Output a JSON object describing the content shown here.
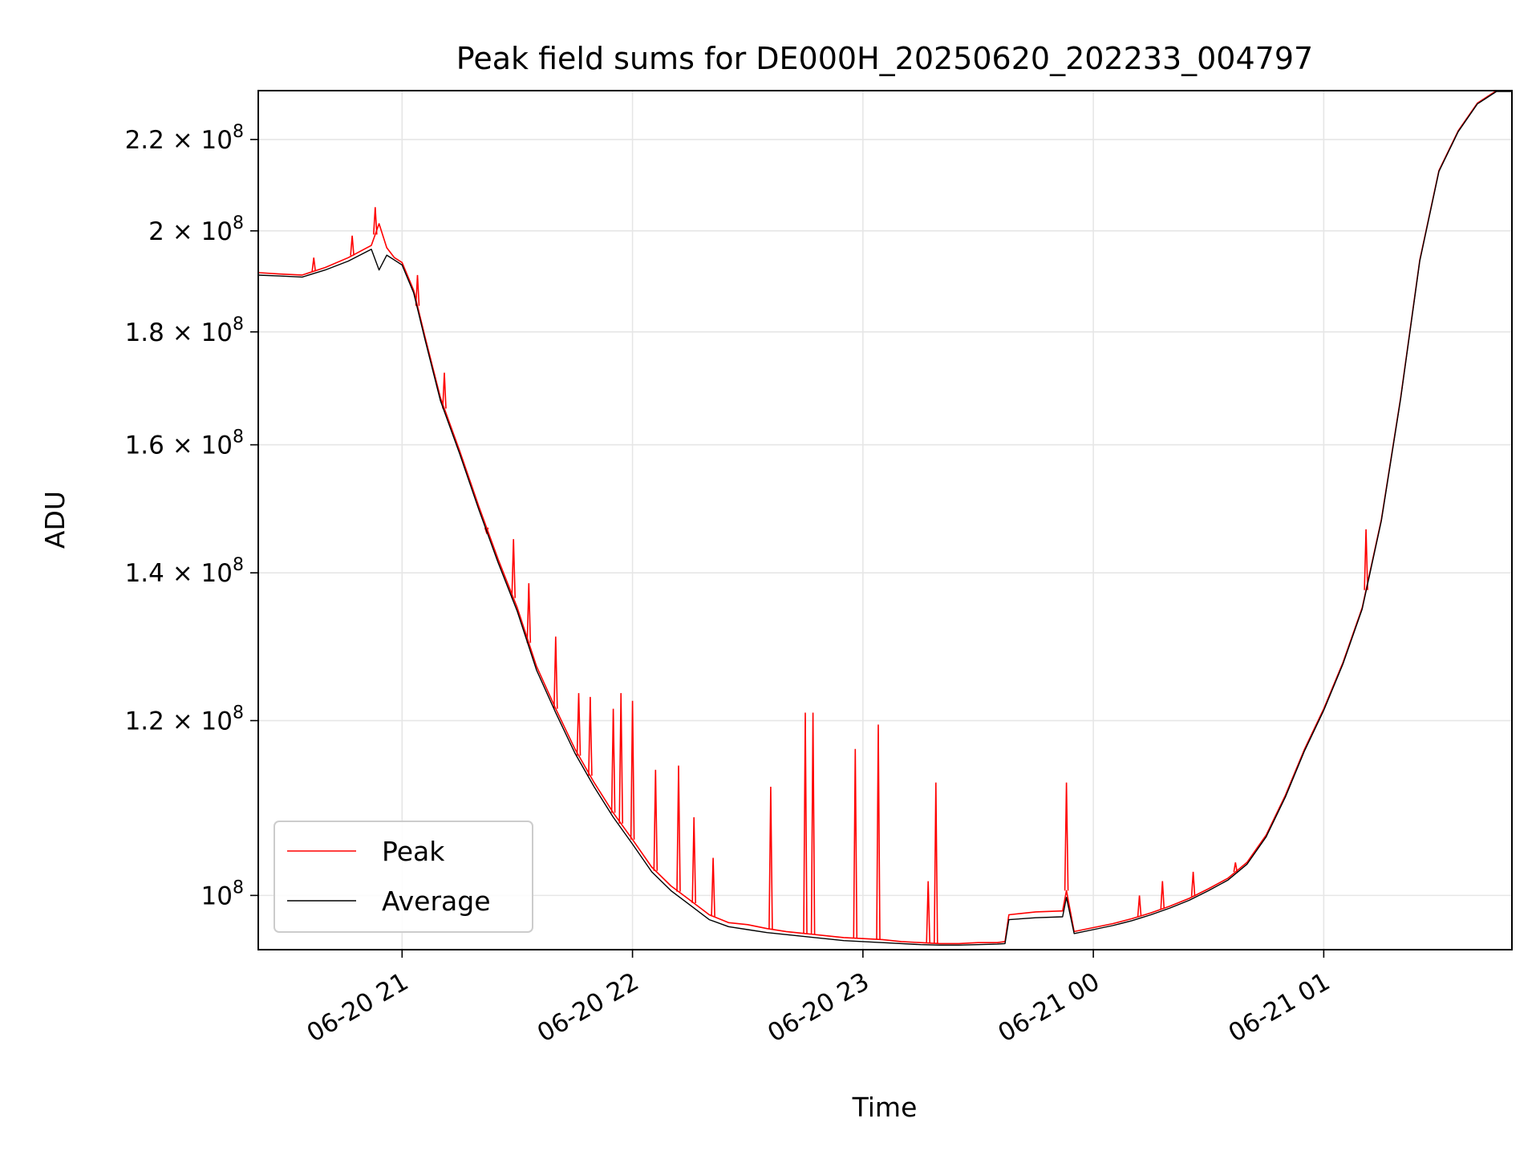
{
  "chart_data": {
    "type": "line",
    "title": "Peak field sums for DE000H_20250620_202233_004797",
    "xlabel": "Time",
    "ylabel": "ADU",
    "yscale": "log",
    "grid": true,
    "legend_position": "lower-left",
    "xlim": [
      "2025-06-20 20:22:33",
      "2025-06-21 01:49:00"
    ],
    "ylim": [
      94500000,
      231500000
    ],
    "x_ticks": [
      {
        "value": "2025-06-20 21:00",
        "label": "06-20 21"
      },
      {
        "value": "2025-06-20 22:00",
        "label": "06-20 22"
      },
      {
        "value": "2025-06-20 23:00",
        "label": "06-20 23"
      },
      {
        "value": "2025-06-21 00:00",
        "label": "06-21 00"
      },
      {
        "value": "2025-06-21 01:00",
        "label": "06-21 01"
      }
    ],
    "y_ticks": [
      {
        "value": 100000000,
        "label": "10",
        "exp": "8",
        "mant": ""
      },
      {
        "value": 120000000,
        "label": "1.2 × 10",
        "exp": "8",
        "mant": "1.2"
      },
      {
        "value": 140000000,
        "label": "1.4 × 10",
        "exp": "8",
        "mant": "1.4"
      },
      {
        "value": 160000000,
        "label": "1.6 × 10",
        "exp": "8",
        "mant": "1.6"
      },
      {
        "value": 180000000,
        "label": "1.8 × 10",
        "exp": "8",
        "mant": "1.8"
      },
      {
        "value": 200000000,
        "label": "2 × 10",
        "exp": "8",
        "mant": "2"
      },
      {
        "value": 220000000,
        "label": "2.2 × 10",
        "exp": "8",
        "mant": "2.2"
      }
    ],
    "series": [
      {
        "name": "Peak",
        "color": "#ff0000",
        "points": [
          [
            "2025-06-20 20:22",
            191500000
          ],
          [
            "2025-06-20 20:28",
            191200000
          ],
          [
            "2025-06-20 20:34",
            191000000
          ],
          [
            "2025-06-20 20:40",
            192500000
          ],
          [
            "2025-06-20 20:46",
            194500000
          ],
          [
            "2025-06-20 20:52",
            197000000
          ],
          [
            "2025-06-20 20:54",
            201500000
          ],
          [
            "2025-06-20 20:56",
            196500000
          ],
          [
            "2025-06-20 20:58",
            194500000
          ],
          [
            "2025-06-20 21:00",
            193500000
          ],
          [
            "2025-06-20 21:03",
            188000000
          ],
          [
            "2025-06-20 21:06",
            179000000
          ],
          [
            "2025-06-20 21:10",
            168000000
          ],
          [
            "2025-06-20 21:15",
            159000000
          ],
          [
            "2025-06-20 21:20",
            150000000
          ],
          [
            "2025-06-20 21:25",
            142000000
          ],
          [
            "2025-06-20 21:30",
            135000000
          ],
          [
            "2025-06-20 21:35",
            127000000
          ],
          [
            "2025-06-20 21:40",
            121500000
          ],
          [
            "2025-06-20 21:45",
            116500000
          ],
          [
            "2025-06-20 21:50",
            112500000
          ],
          [
            "2025-06-20 21:55",
            109000000
          ],
          [
            "2025-06-20 22:00",
            106000000
          ],
          [
            "2025-06-20 22:05",
            103000000
          ],
          [
            "2025-06-20 22:10",
            101000000
          ],
          [
            "2025-06-20 22:15",
            99500000
          ],
          [
            "2025-06-20 22:20",
            98000000
          ],
          [
            "2025-06-20 22:25",
            97200000
          ],
          [
            "2025-06-20 22:30",
            97000000
          ],
          [
            "2025-06-20 22:35",
            96600000
          ],
          [
            "2025-06-20 22:40",
            96300000
          ],
          [
            "2025-06-20 22:45",
            96100000
          ],
          [
            "2025-06-20 22:50",
            95900000
          ],
          [
            "2025-06-20 22:55",
            95700000
          ],
          [
            "2025-06-20 23:00",
            95600000
          ],
          [
            "2025-06-20 23:05",
            95500000
          ],
          [
            "2025-06-20 23:10",
            95300000
          ],
          [
            "2025-06-20 23:15",
            95200000
          ],
          [
            "2025-06-20 23:20",
            95100000
          ],
          [
            "2025-06-20 23:25",
            95100000
          ],
          [
            "2025-06-20 23:30",
            95200000
          ],
          [
            "2025-06-20 23:35",
            95200000
          ],
          [
            "2025-06-20 23:37",
            95300000
          ],
          [
            "2025-06-20 23:38",
            98000000
          ],
          [
            "2025-06-20 23:45",
            98300000
          ],
          [
            "2025-06-20 23:52",
            98400000
          ],
          [
            "2025-06-20 23:53",
            100500000
          ],
          [
            "2025-06-20 23:55",
            96300000
          ],
          [
            "2025-06-21 00:00",
            96700000
          ],
          [
            "2025-06-21 00:05",
            97100000
          ],
          [
            "2025-06-21 00:10",
            97600000
          ],
          [
            "2025-06-21 00:15",
            98200000
          ],
          [
            "2025-06-21 00:20",
            98900000
          ],
          [
            "2025-06-21 00:25",
            99700000
          ],
          [
            "2025-06-21 00:30",
            100700000
          ],
          [
            "2025-06-21 00:35",
            101800000
          ],
          [
            "2025-06-21 00:40",
            103500000
          ],
          [
            "2025-06-21 00:45",
            106500000
          ],
          [
            "2025-06-21 00:50",
            111000000
          ],
          [
            "2025-06-21 00:55",
            116500000
          ],
          [
            "2025-06-21 01:00",
            121500000
          ],
          [
            "2025-06-21 01:05",
            127500000
          ],
          [
            "2025-06-21 01:10",
            135000000
          ],
          [
            "2025-06-21 01:15",
            148000000
          ],
          [
            "2025-06-21 01:20",
            168000000
          ],
          [
            "2025-06-21 01:25",
            194000000
          ],
          [
            "2025-06-21 01:30",
            213000000
          ],
          [
            "2025-06-21 01:35",
            222000000
          ],
          [
            "2025-06-21 01:40",
            228500000
          ],
          [
            "2025-06-21 01:45",
            231500000
          ],
          [
            "2025-06-21 01:49",
            231500000
          ]
        ],
        "spikes": [
          [
            "2025-06-20 20:37",
            194500000
          ],
          [
            "2025-06-20 20:47",
            199000000
          ],
          [
            "2025-06-20 20:53",
            205000000
          ],
          [
            "2025-06-20 21:04",
            191000000
          ],
          [
            "2025-06-20 21:11",
            172500000
          ],
          [
            "2025-06-20 21:22",
            146000000
          ],
          [
            "2025-06-20 21:29",
            145000000
          ],
          [
            "2025-06-20 21:33",
            138500000
          ],
          [
            "2025-06-20 21:40",
            131000000
          ],
          [
            "2025-06-20 21:46",
            123500000
          ],
          [
            "2025-06-20 21:49",
            123000000
          ],
          [
            "2025-06-20 21:55",
            121500000
          ],
          [
            "2025-06-20 21:57",
            123500000
          ],
          [
            "2025-06-20 22:00",
            122500000
          ],
          [
            "2025-06-20 22:06",
            114000000
          ],
          [
            "2025-06-20 22:12",
            114500000
          ],
          [
            "2025-06-20 22:16",
            108500000
          ],
          [
            "2025-06-20 22:21",
            104000000
          ],
          [
            "2025-06-20 22:36",
            112000000
          ],
          [
            "2025-06-20 22:45",
            121000000
          ],
          [
            "2025-06-20 22:47",
            121000000
          ],
          [
            "2025-06-20 22:58",
            116500000
          ],
          [
            "2025-06-20 23:04",
            119500000
          ],
          [
            "2025-06-20 23:17",
            101500000
          ],
          [
            "2025-06-20 23:19",
            112500000
          ],
          [
            "2025-06-20 23:53",
            112500000
          ],
          [
            "2025-06-21 00:12",
            100000000
          ],
          [
            "2025-06-21 00:18",
            101500000
          ],
          [
            "2025-06-21 00:26",
            102500000
          ],
          [
            "2025-06-21 00:37",
            103500000
          ],
          [
            "2025-06-21 01:11",
            146500000
          ]
        ]
      },
      {
        "name": "Average",
        "color": "#000000",
        "points": [
          [
            "2025-06-20 20:22",
            191000000
          ],
          [
            "2025-06-20 20:28",
            190800000
          ],
          [
            "2025-06-20 20:34",
            190600000
          ],
          [
            "2025-06-20 20:40",
            192000000
          ],
          [
            "2025-06-20 20:46",
            193800000
          ],
          [
            "2025-06-20 20:52",
            196200000
          ],
          [
            "2025-06-20 20:54",
            192000000
          ],
          [
            "2025-06-20 20:56",
            195000000
          ],
          [
            "2025-06-20 20:58",
            194000000
          ],
          [
            "2025-06-20 21:00",
            193000000
          ],
          [
            "2025-06-20 21:03",
            187500000
          ],
          [
            "2025-06-20 21:06",
            178500000
          ],
          [
            "2025-06-20 21:10",
            167500000
          ],
          [
            "2025-06-20 21:15",
            158500000
          ],
          [
            "2025-06-20 21:20",
            149500000
          ],
          [
            "2025-06-20 21:25",
            141500000
          ],
          [
            "2025-06-20 21:30",
            134500000
          ],
          [
            "2025-06-20 21:35",
            126500000
          ],
          [
            "2025-06-20 21:40",
            121000000
          ],
          [
            "2025-06-20 21:45",
            116000000
          ],
          [
            "2025-06-20 21:50",
            112000000
          ],
          [
            "2025-06-20 21:55",
            108500000
          ],
          [
            "2025-06-20 22:00",
            105500000
          ],
          [
            "2025-06-20 22:05",
            102500000
          ],
          [
            "2025-06-20 22:10",
            100500000
          ],
          [
            "2025-06-20 22:15",
            99000000
          ],
          [
            "2025-06-20 22:20",
            97500000
          ],
          [
            "2025-06-20 22:25",
            96800000
          ],
          [
            "2025-06-20 22:30",
            96500000
          ],
          [
            "2025-06-20 22:35",
            96200000
          ],
          [
            "2025-06-20 22:40",
            96000000
          ],
          [
            "2025-06-20 22:45",
            95800000
          ],
          [
            "2025-06-20 22:50",
            95600000
          ],
          [
            "2025-06-20 22:55",
            95400000
          ],
          [
            "2025-06-20 23:00",
            95300000
          ],
          [
            "2025-06-20 23:05",
            95200000
          ],
          [
            "2025-06-20 23:10",
            95100000
          ],
          [
            "2025-06-20 23:15",
            95000000
          ],
          [
            "2025-06-20 23:20",
            94950000
          ],
          [
            "2025-06-20 23:25",
            94950000
          ],
          [
            "2025-06-20 23:30",
            95000000
          ],
          [
            "2025-06-20 23:35",
            95050000
          ],
          [
            "2025-06-20 23:37",
            95100000
          ],
          [
            "2025-06-20 23:38",
            97500000
          ],
          [
            "2025-06-20 23:45",
            97700000
          ],
          [
            "2025-06-20 23:52",
            97800000
          ],
          [
            "2025-06-20 23:53",
            99800000
          ],
          [
            "2025-06-20 23:55",
            96100000
          ],
          [
            "2025-06-21 00:00",
            96500000
          ],
          [
            "2025-06-21 00:05",
            96900000
          ],
          [
            "2025-06-21 00:10",
            97400000
          ],
          [
            "2025-06-21 00:15",
            98000000
          ],
          [
            "2025-06-21 00:20",
            98700000
          ],
          [
            "2025-06-21 00:25",
            99500000
          ],
          [
            "2025-06-21 00:30",
            100500000
          ],
          [
            "2025-06-21 00:35",
            101600000
          ],
          [
            "2025-06-21 00:40",
            103300000
          ],
          [
            "2025-06-21 00:45",
            106300000
          ],
          [
            "2025-06-21 00:50",
            110800000
          ],
          [
            "2025-06-21 00:55",
            116300000
          ],
          [
            "2025-06-21 01:00",
            121300000
          ],
          [
            "2025-06-21 01:05",
            127300000
          ],
          [
            "2025-06-21 01:10",
            134800000
          ],
          [
            "2025-06-21 01:15",
            147800000
          ],
          [
            "2025-06-21 01:20",
            167800000
          ],
          [
            "2025-06-21 01:25",
            193800000
          ],
          [
            "2025-06-21 01:30",
            212800000
          ],
          [
            "2025-06-21 01:35",
            221800000
          ],
          [
            "2025-06-21 01:40",
            228300000
          ],
          [
            "2025-06-21 01:45",
            231300000
          ],
          [
            "2025-06-21 01:49",
            231300000
          ]
        ]
      }
    ]
  }
}
